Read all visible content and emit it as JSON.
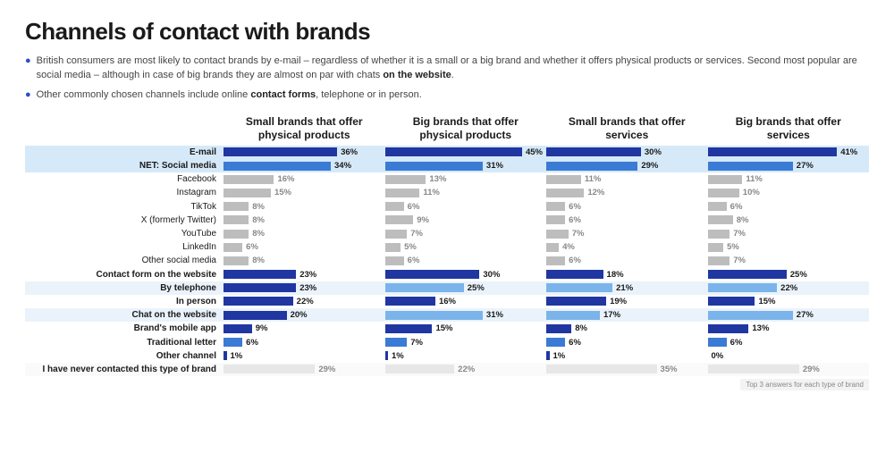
{
  "title": "Channels of contact with brands",
  "bullets": [
    "British consumers are most likely to contact brands by e-mail – regardless of whether it is a small or a big brand and whether it offers physical products or services. Second most popular are social media – although in case of big brands they are almost on par with chats <b>on the website</b>.",
    "Other commonly chosen channels include online <b>contact forms</b>, telephone or in person."
  ],
  "footnote": "Top 3 answers for each type of brand",
  "columns": [
    "Small brands that offer physical products",
    "Big brands that offer physical products",
    "Small brands that offer services",
    "Big brands that offer services"
  ],
  "colors": {
    "dark_blue": "#2036a1",
    "mid_blue": "#3a7bd5",
    "light_blue": "#7ab4ea",
    "grey": "#bdbdbd",
    "very_light": "#e7e7e7",
    "hl_high": "#d6e9f8",
    "hl_low": "#eaf3fb"
  },
  "bar_max": 50,
  "rows": [
    {
      "label": "E-mail",
      "bold": true,
      "style": "dark_blue",
      "hl": "high",
      "vals": [
        36,
        45,
        30,
        41
      ]
    },
    {
      "label": "NET: Social media",
      "bold": true,
      "style": "mid_blue",
      "hl": "high",
      "vals": [
        34,
        31,
        29,
        27
      ]
    },
    {
      "label": "Facebook",
      "bold": false,
      "style": "grey",
      "hl": "",
      "vals": [
        16,
        13,
        11,
        11
      ]
    },
    {
      "label": "Instagram",
      "bold": false,
      "style": "grey",
      "hl": "",
      "vals": [
        15,
        11,
        12,
        10
      ]
    },
    {
      "label": "TikTok",
      "bold": false,
      "style": "grey",
      "hl": "",
      "vals": [
        8,
        6,
        6,
        6
      ]
    },
    {
      "label": "X (formerly Twitter)",
      "bold": false,
      "style": "grey",
      "hl": "",
      "vals": [
        8,
        9,
        6,
        8
      ]
    },
    {
      "label": "YouTube",
      "bold": false,
      "style": "grey",
      "hl": "",
      "vals": [
        8,
        7,
        7,
        7
      ]
    },
    {
      "label": "LinkedIn",
      "bold": false,
      "style": "grey",
      "hl": "",
      "vals": [
        6,
        5,
        4,
        5
      ]
    },
    {
      "label": "Other social media",
      "bold": false,
      "style": "grey",
      "hl": "",
      "vals": [
        8,
        6,
        6,
        7
      ]
    },
    {
      "label": "Contact form on the website",
      "bold": true,
      "style": "dark_blue",
      "hl": "",
      "vals": [
        23,
        30,
        18,
        25
      ]
    },
    {
      "label": "By telephone",
      "bold": true,
      "style": "mix_tel",
      "hl": "low",
      "vals": [
        23,
        25,
        21,
        22
      ]
    },
    {
      "label": "In person",
      "bold": true,
      "style": "dark_blue",
      "hl": "",
      "vals": [
        22,
        16,
        19,
        15
      ]
    },
    {
      "label": "Chat on the website",
      "bold": true,
      "style": "mix_chat",
      "hl": "low",
      "vals": [
        20,
        31,
        17,
        27
      ]
    },
    {
      "label": "Brand's mobile app",
      "bold": true,
      "style": "dark_blue",
      "hl": "",
      "vals": [
        9,
        15,
        8,
        13
      ]
    },
    {
      "label": "Traditional letter",
      "bold": true,
      "style": "mid_blue",
      "hl": "",
      "vals": [
        6,
        7,
        6,
        6
      ]
    },
    {
      "label": "Other channel",
      "bold": true,
      "style": "dark_blue",
      "hl": "",
      "vals": [
        1,
        1,
        1,
        0
      ]
    },
    {
      "label": "I have never contacted this type of brand",
      "bold": true,
      "style": "very_light",
      "hl": "pale",
      "vals": [
        29,
        22,
        35,
        29
      ]
    }
  ]
}
